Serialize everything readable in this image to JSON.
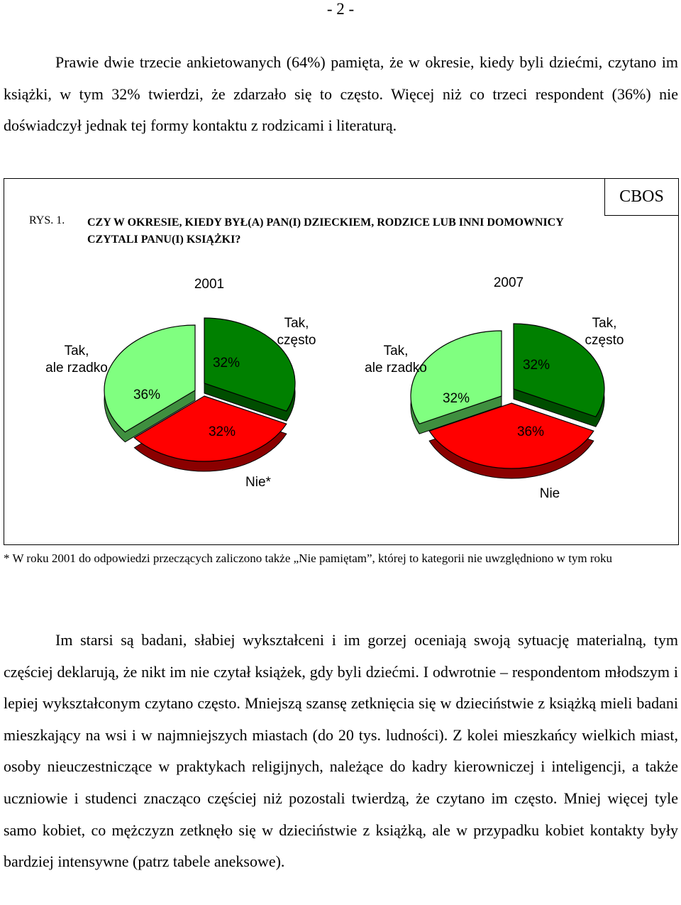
{
  "page_number": "- 2 -",
  "intro_paragraph": "Prawie dwie trzecie ankietowanych (64%) pamięta, że w okresie, kiedy byli dziećmi, czytano im książki, w tym 32% twierdzi, że zdarzało się to często. Więcej niż co trzeci respondent (36%) nie doświadczył jednak tej formy kontaktu z rodzicami i literaturą.",
  "figure": {
    "label": "RYS. 1.",
    "title": "CZY W OKRESIE, KIEDY BYŁ(A) PAN(I) DZIECKIEM, RODZICE LUB INNI DOMOWNICY CZYTALI PANU(I) KSIĄŻKI?",
    "source": "CBOS"
  },
  "chart_data": [
    {
      "type": "pie",
      "title": "2001",
      "slices": [
        {
          "label": "Tak, często",
          "value": 32,
          "value_label": "32%",
          "color": "#008000"
        },
        {
          "label": "Nie*",
          "value": 32,
          "value_label": "32%",
          "color": "#ff0000"
        },
        {
          "label": "Tak, ale rzadko",
          "value": 36,
          "value_label": "36%",
          "color": "#80ff80"
        }
      ]
    },
    {
      "type": "pie",
      "title": "2007",
      "slices": [
        {
          "label": "Tak, często",
          "value": 32,
          "value_label": "32%",
          "color": "#008000"
        },
        {
          "label": "Nie",
          "value": 36,
          "value_label": "36%",
          "color": "#ff0000"
        },
        {
          "label": "Tak, ale rzadko",
          "value": 32,
          "value_label": "32%",
          "color": "#80ff80"
        }
      ]
    }
  ],
  "footnote": "* W roku 2001 do odpowiedzi przeczących zaliczono także „Nie pamiętam”, której to kategorii nie uwzględniono w tym roku",
  "body_paragraph": "Im starsi są badani, słabiej wykształceni i im gorzej oceniają swoją sytuację materialną, tym częściej deklarują, że nikt im nie czytał książek, gdy byli dziećmi. I odwrotnie – respondentom młodszym i lepiej wykształconym czytano często. Mniejszą szansę zetknięcia się w dzieciństwie z książką mieli badani mieszkający na wsi i w najmniejszych miastach (do 20 tys. ludności). Z kolei mieszkańcy wielkich miast, osoby nieuczestniczące w praktykach religijnych, należące do kadry kierowniczej i inteligencji, a także uczniowie i studenci znacząco częściej niż pozostali twierdzą, że czytano im często. Mniej więcej tyle samo kobiet, co mężczyzn zetknęło się w dzieciństwie z książką, ale w przypadku kobiet kontakty były bardziej intensywne (patrz tabele aneksowe)."
}
